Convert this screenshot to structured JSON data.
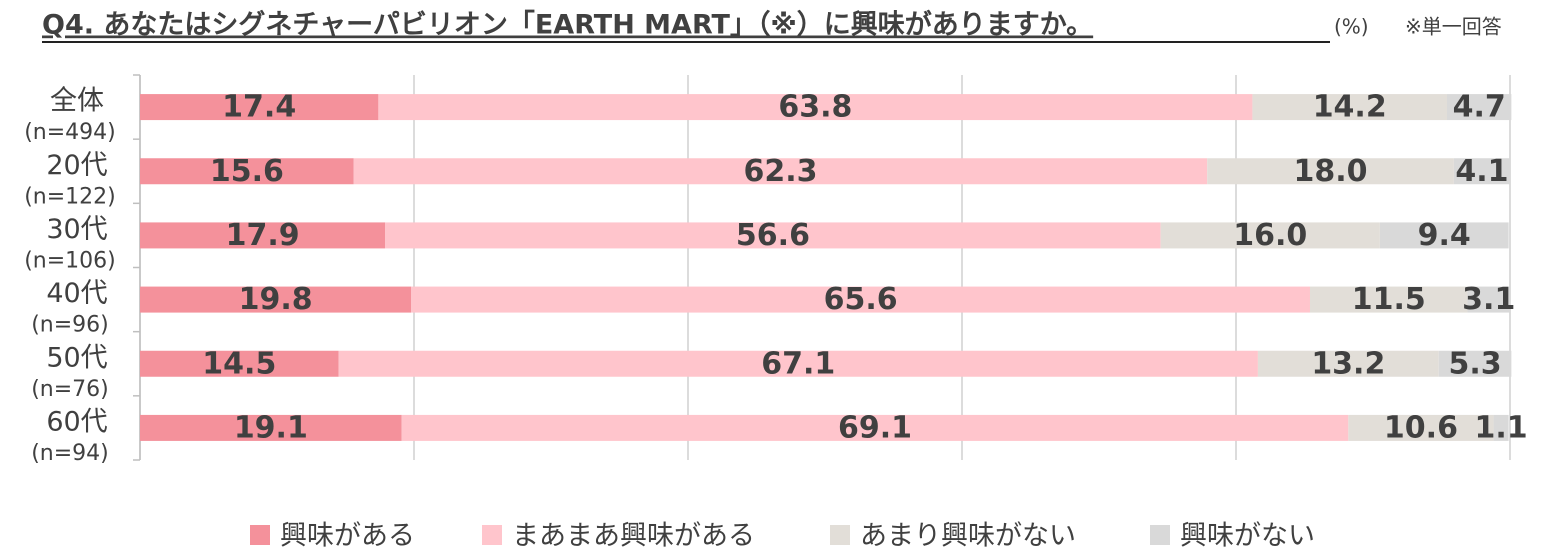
{
  "chart_data": {
    "type": "stacked-bar-horizontal",
    "title": "Q4. あなたはシグネチャーパビリオン「EARTH MART」（※）に興味がありますか。",
    "unit": "(%)",
    "note": "※単一回答",
    "categories": [
      "全体",
      "20代",
      "30代",
      "40代",
      "50代",
      "60代"
    ],
    "category_notes": [
      "(n=494)",
      "(n=122)",
      "(n=106)",
      "(n=96)",
      "(n=76)",
      "(n=94)"
    ],
    "xlim": [
      0,
      100
    ],
    "xticks": [
      0,
      20,
      40,
      60,
      80,
      100
    ],
    "grid": true,
    "legend": "bottom",
    "series": [
      {
        "name": "興味がある",
        "color": "#f4919b",
        "values": [
          17.4,
          15.6,
          17.9,
          19.8,
          14.5,
          19.1
        ]
      },
      {
        "name": "まあまあ興味がある",
        "color": "#ffc5cc",
        "values": [
          63.8,
          62.3,
          56.6,
          65.6,
          67.1,
          69.1
        ]
      },
      {
        "name": "あまり興味がない",
        "color": "#e2ded8",
        "values": [
          14.2,
          18.0,
          16.0,
          11.5,
          13.2,
          10.6
        ],
        "value_labels": [
          "14.2",
          "18.0",
          "16.0",
          "11.5",
          "13.2",
          "10.6"
        ]
      },
      {
        "name": "興味がない",
        "color": "#d9d9d9",
        "values": [
          4.7,
          4.1,
          9.4,
          3.1,
          5.3,
          1.1
        ]
      }
    ]
  }
}
